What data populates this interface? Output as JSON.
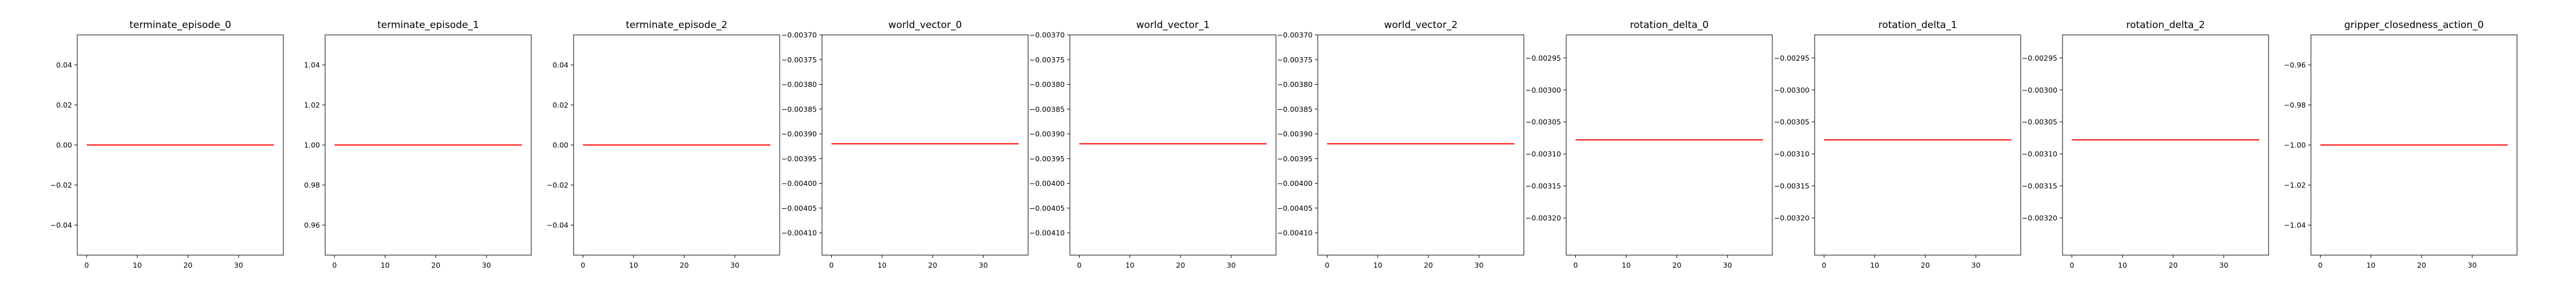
{
  "chart_data": [
    {
      "type": "line",
      "title": "terminate_episode_0",
      "xlim": [
        -1.85,
        38.85
      ],
      "ylim": [
        -0.055,
        0.055
      ],
      "x_ticks": [
        0,
        10,
        20,
        30
      ],
      "x_tick_labels": [
        "0",
        "10",
        "20",
        "30"
      ],
      "y_ticks": [
        0.04,
        0.02,
        0.0,
        -0.02,
        -0.04
      ],
      "y_tick_labels": [
        "0.04",
        "0.02",
        "0.00",
        "−0.02",
        "−0.04"
      ],
      "y_tick_side": "left",
      "series": [
        {
          "x": [
            0,
            37
          ],
          "y": [
            0.0,
            0.0
          ],
          "color": "#ff0000"
        }
      ]
    },
    {
      "type": "line",
      "title": "terminate_episode_1",
      "xlim": [
        -1.85,
        38.85
      ],
      "ylim": [
        0.945,
        1.055
      ],
      "x_ticks": [
        0,
        10,
        20,
        30
      ],
      "x_tick_labels": [
        "0",
        "10",
        "20",
        "30"
      ],
      "y_ticks": [
        1.04,
        1.02,
        1.0,
        0.98,
        0.96
      ],
      "y_tick_labels": [
        "1.04",
        "1.02",
        "1.00",
        "0.98",
        "0.96"
      ],
      "y_tick_side": "left",
      "series": [
        {
          "x": [
            0,
            37
          ],
          "y": [
            1.0,
            1.0
          ],
          "color": "#ff0000"
        }
      ]
    },
    {
      "type": "line",
      "title": "terminate_episode_2",
      "xlim": [
        -1.85,
        38.85
      ],
      "ylim": [
        -0.055,
        0.055
      ],
      "x_ticks": [
        0,
        10,
        20,
        30
      ],
      "x_tick_labels": [
        "0",
        "10",
        "20",
        "30"
      ],
      "y_ticks": [
        0.04,
        0.02,
        0.0,
        -0.02,
        -0.04
      ],
      "y_tick_labels": [
        "0.04",
        "0.02",
        "0.00",
        "−0.02",
        "−0.04"
      ],
      "y_tick_side": "left",
      "series": [
        {
          "x": [
            0,
            37
          ],
          "y": [
            0.0,
            0.0
          ],
          "color": "#ff0000"
        }
      ]
    },
    {
      "type": "line",
      "title": "world_vector_0",
      "xlim": [
        -1.85,
        38.85
      ],
      "ylim": [
        -0.004145,
        -0.0037
      ],
      "x_ticks": [
        0,
        10,
        20,
        30
      ],
      "x_tick_labels": [
        "0",
        "10",
        "20",
        "30"
      ],
      "y_ticks": [
        -0.0037,
        -0.00375,
        -0.0038,
        -0.00385,
        -0.0039,
        -0.00395,
        -0.004,
        -0.00405,
        -0.0041
      ],
      "y_tick_labels": [
        "−0.00370",
        "−0.00375",
        "−0.00380",
        "−0.00385",
        "−0.00390",
        "−0.00395",
        "−0.00400",
        "−0.00405",
        "−0.00410"
      ],
      "y_tick_side": "left",
      "series": [
        {
          "x": [
            0,
            37
          ],
          "y": [
            -0.00392,
            -0.00392
          ],
          "color": "#ff0000"
        }
      ]
    },
    {
      "type": "line",
      "title": "world_vector_1",
      "xlim": [
        -1.85,
        38.85
      ],
      "ylim": [
        -0.004145,
        -0.0037
      ],
      "x_ticks": [
        0,
        10,
        20,
        30
      ],
      "x_tick_labels": [
        "0",
        "10",
        "20",
        "30"
      ],
      "y_ticks": [
        -0.0037,
        -0.00375,
        -0.0038,
        -0.00385,
        -0.0039,
        -0.00395,
        -0.004,
        -0.00405,
        -0.0041
      ],
      "y_tick_labels": [
        "−0.00370",
        "−0.00375",
        "−0.00380",
        "−0.00385",
        "−0.00390",
        "−0.00395",
        "−0.00400",
        "−0.00405",
        "−0.00410"
      ],
      "y_tick_side": "left",
      "series": [
        {
          "x": [
            0,
            37
          ],
          "y": [
            -0.00392,
            -0.00392
          ],
          "color": "#ff0000"
        }
      ]
    },
    {
      "type": "line",
      "title": "world_vector_2",
      "xlim": [
        -1.85,
        38.85
      ],
      "ylim": [
        -0.004145,
        -0.0037
      ],
      "x_ticks": [
        0,
        10,
        20,
        30
      ],
      "x_tick_labels": [
        "0",
        "10",
        "20",
        "30"
      ],
      "y_ticks": [
        -0.0037,
        -0.00375,
        -0.0038,
        -0.00385,
        -0.0039,
        -0.00395,
        -0.004,
        -0.00405,
        -0.0041
      ],
      "y_tick_labels": [
        "−0.00370",
        "−0.00375",
        "−0.00380",
        "−0.00385",
        "−0.00390",
        "−0.00395",
        "−0.00400",
        "−0.00405",
        "−0.00410"
      ],
      "y_tick_side": "left",
      "series": [
        {
          "x": [
            0,
            37
          ],
          "y": [
            -0.00392,
            -0.00392
          ],
          "color": "#ff0000"
        }
      ]
    },
    {
      "type": "line",
      "title": "rotation_delta_0",
      "xlim": [
        -1.85,
        38.85
      ],
      "ylim": [
        -0.003258,
        -0.002914
      ],
      "x_ticks": [
        0,
        10,
        20,
        30
      ],
      "x_tick_labels": [
        "0",
        "10",
        "20",
        "30"
      ],
      "y_ticks": [
        -0.00295,
        -0.003,
        -0.00305,
        -0.0031,
        -0.00315,
        -0.0032
      ],
      "y_tick_labels": [
        "−0.00295",
        "−0.00300",
        "−0.00305",
        "−0.00310",
        "−0.00315",
        "−0.00320"
      ],
      "y_tick_side": "left",
      "series": [
        {
          "x": [
            0,
            37
          ],
          "y": [
            -0.003078,
            -0.003078
          ],
          "color": "#ff0000"
        }
      ]
    },
    {
      "type": "line",
      "title": "rotation_delta_1",
      "xlim": [
        -1.85,
        38.85
      ],
      "ylim": [
        -0.003258,
        -0.002914
      ],
      "x_ticks": [
        0,
        10,
        20,
        30
      ],
      "x_tick_labels": [
        "0",
        "10",
        "20",
        "30"
      ],
      "y_ticks": [
        -0.00295,
        -0.003,
        -0.00305,
        -0.0031,
        -0.00315,
        -0.0032
      ],
      "y_tick_labels": [
        "−0.00295",
        "−0.00300",
        "−0.00305",
        "−0.00310",
        "−0.00315",
        "−0.00320"
      ],
      "y_tick_side": "left",
      "series": [
        {
          "x": [
            0,
            37
          ],
          "y": [
            -0.003078,
            -0.003078
          ],
          "color": "#ff0000"
        }
      ]
    },
    {
      "type": "line",
      "title": "rotation_delta_2",
      "xlim": [
        -1.85,
        38.85
      ],
      "ylim": [
        -0.003258,
        -0.002914
      ],
      "x_ticks": [
        0,
        10,
        20,
        30
      ],
      "x_tick_labels": [
        "0",
        "10",
        "20",
        "30"
      ],
      "y_ticks": [
        -0.00295,
        -0.003,
        -0.00305,
        -0.0031,
        -0.00315,
        -0.0032
      ],
      "y_tick_labels": [
        "−0.00295",
        "−0.00300",
        "−0.00305",
        "−0.00310",
        "−0.00315",
        "−0.00320"
      ],
      "y_tick_side": "left",
      "series": [
        {
          "x": [
            0,
            37
          ],
          "y": [
            -0.003078,
            -0.003078
          ],
          "color": "#ff0000"
        }
      ]
    },
    {
      "type": "line",
      "title": "gripper_closedness_action_0",
      "xlim": [
        -1.85,
        38.85
      ],
      "ylim": [
        -1.055,
        -0.945
      ],
      "x_ticks": [
        0,
        10,
        20,
        30
      ],
      "x_tick_labels": [
        "0",
        "10",
        "20",
        "30"
      ],
      "y_ticks": [
        -0.96,
        -0.98,
        -1.0,
        -1.02,
        -1.04
      ],
      "y_tick_labels": [
        "−0.96",
        "−0.98",
        "−1.00",
        "−1.02",
        "−1.04"
      ],
      "y_tick_side": "left",
      "series": [
        {
          "x": [
            0,
            37
          ],
          "y": [
            -1.0,
            -1.0
          ],
          "color": "#ff0000"
        }
      ]
    }
  ]
}
